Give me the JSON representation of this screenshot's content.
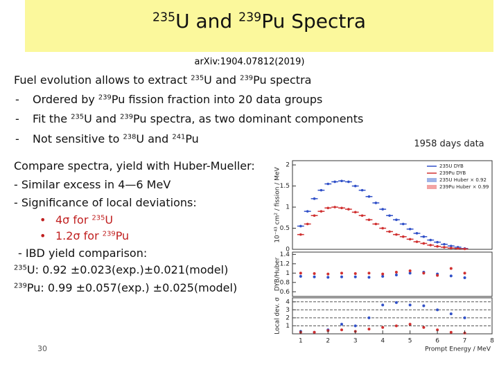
{
  "title": {
    "segments": [
      {
        "sup": "235"
      },
      "U and ",
      {
        "sup": "239"
      },
      "Pu Spectra"
    ]
  },
  "reference": "arXiv:1904.07812(2019)",
  "lines": [
    {
      "segments": [
        "Fuel evolution allows to extract ",
        {
          "sup": "235"
        },
        "U and ",
        {
          "sup": "239"
        },
        "Pu spectra"
      ]
    },
    {
      "bullet": "-",
      "segments": [
        "Ordered by ",
        {
          "sup": "239"
        },
        "Pu fission fraction into 20 data groups"
      ]
    },
    {
      "bullet": "-",
      "segments": [
        "Fit the ",
        {
          "sup": "235"
        },
        "U and ",
        {
          "sup": "239"
        },
        "Pu spectra, as two dominant components"
      ]
    },
    {
      "bullet": "-",
      "segments": [
        "Not sensitive to ",
        {
          "sup": "238"
        },
        "U and ",
        {
          "sup": "241"
        },
        "Pu"
      ]
    },
    {
      "segments": [
        "Compare spectra, yield with Huber-Mueller:"
      ]
    },
    {
      "segments": [
        "- Similar excess in 4—6 MeV"
      ]
    },
    {
      "segments": [
        "- Significance of local deviations:"
      ]
    },
    {
      "bullet": "•",
      "segments": [
        "4σ for ",
        {
          "sup": "235"
        },
        "U"
      ]
    },
    {
      "bullet": "•",
      "segments": [
        "1.2σ for ",
        {
          "sup": "239"
        },
        "Pu"
      ]
    },
    {
      "segments": [
        "- IBD yield comparison:"
      ]
    },
    {
      "segments": [
        {
          "sup": "235"
        },
        "U: 0.92 ±0.023(exp.)±0.021(model)"
      ]
    },
    {
      "segments": [
        {
          "sup": "239"
        },
        "Pu: 0.99 ±0.057(exp.) ±0.025(model)"
      ]
    }
  ],
  "page_number": "30",
  "chart_data": {
    "type": "line",
    "annotation": "1958 days data",
    "x_label": "Prompt Energy / MeV",
    "xlim": [
      0.7,
      8
    ],
    "xticks": [
      1,
      2,
      3,
      4,
      5,
      6,
      7,
      8
    ],
    "x": [
      1,
      1.25,
      1.5,
      1.75,
      2,
      2.25,
      2.5,
      2.75,
      3,
      3.25,
      3.5,
      3.75,
      4,
      4.25,
      4.5,
      4.75,
      5,
      5.25,
      5.5,
      5.75,
      6,
      6.25,
      6.5,
      6.75,
      7
    ],
    "y_label": "10⁻⁴³ cm² / fission / MeV",
    "ylim": [
      0,
      2.1
    ],
    "yticks": [
      0,
      0.5,
      1,
      1.5,
      2
    ],
    "legend": [
      "235U Huber × 0.92",
      "239Pu Huber × 0.99"
    ],
    "legend_colors": [
      "#9db3e8",
      "#f2a3a3"
    ],
    "series": [
      {
        "name": "235U DYB",
        "color": "#3050c8",
        "values": [
          0.55,
          0.9,
          1.2,
          1.4,
          1.55,
          1.6,
          1.62,
          1.6,
          1.5,
          1.4,
          1.25,
          1.1,
          0.95,
          0.8,
          0.7,
          0.6,
          0.48,
          0.38,
          0.3,
          0.22,
          0.17,
          0.12,
          0.08,
          0.05,
          0.02
        ]
      },
      {
        "name": "239Pu DYB",
        "color": "#d03030",
        "values": [
          0.35,
          0.6,
          0.8,
          0.9,
          0.98,
          1.0,
          0.98,
          0.95,
          0.88,
          0.8,
          0.7,
          0.6,
          0.5,
          0.42,
          0.35,
          0.3,
          0.24,
          0.18,
          0.14,
          0.1,
          0.07,
          0.05,
          0.03,
          0.02,
          0.01
        ]
      }
    ],
    "x2": [
      1,
      1.5,
      2,
      2.5,
      3,
      3.5,
      4,
      4.5,
      5,
      5.5,
      6,
      6.5,
      7
    ],
    "ratio_label": "DYB/Huber",
    "ratio_ylim": [
      0.5,
      1.45
    ],
    "ratio_yticks": [
      0.6,
      0.8,
      1,
      1.2,
      1.4
    ],
    "ratio_series": [
      {
        "color": "#3050c8",
        "values": [
          0.93,
          0.92,
          0.91,
          0.92,
          0.92,
          0.91,
          0.93,
          0.96,
          1.0,
          1.02,
          0.98,
          0.94,
          0.9
        ]
      },
      {
        "color": "#d03030",
        "values": [
          1.0,
          0.99,
          0.98,
          1.0,
          0.99,
          1.0,
          0.98,
          1.02,
          1.05,
          1.0,
          0.95,
          1.1,
          1.0
        ]
      }
    ],
    "dev_label": "Local dev. σ",
    "dev_ylim": [
      0,
      4.5
    ],
    "dev_yticks": [
      1,
      2,
      3,
      4
    ],
    "dev_series": [
      {
        "color": "#3050c8",
        "values": [
          0.3,
          0.2,
          0.5,
          1.2,
          1.0,
          2.0,
          3.6,
          3.9,
          3.6,
          3.5,
          3.0,
          2.5,
          2.0
        ]
      },
      {
        "color": "#d03030",
        "values": [
          0.2,
          0.2,
          0.4,
          0.5,
          0.3,
          0.6,
          0.8,
          1.0,
          1.2,
          0.8,
          0.5,
          0.2,
          0.1
        ]
      }
    ]
  }
}
